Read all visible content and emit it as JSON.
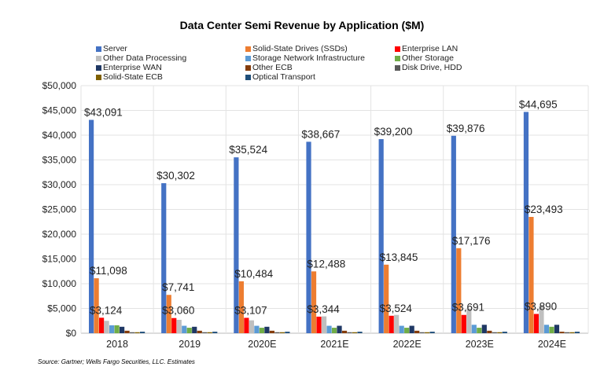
{
  "chart_data": {
    "type": "bar",
    "title": "Data Center Semi Revenue by Application ($M)",
    "categories": [
      "2018",
      "2019",
      "2020E",
      "2021E",
      "2022E",
      "2023E",
      "2024E"
    ],
    "ylim": [
      0,
      50000
    ],
    "yticks": [
      "$0",
      "$5,000",
      "$10,000",
      "$15,000",
      "$20,000",
      "$25,000",
      "$30,000",
      "$35,000",
      "$40,000",
      "$45,000",
      "$50,000"
    ],
    "grid": true,
    "legend": "top",
    "series": [
      {
        "name": "Server",
        "color": "#4472C4",
        "values": [
          43091,
          30302,
          35524,
          38667,
          39200,
          39876,
          44695
        ],
        "labels": [
          "$43,091",
          "$30,302",
          "$35,524",
          "$38,667",
          "$39,200",
          "$39,876",
          "$44,695"
        ]
      },
      {
        "name": "Solid-State Drives (SSDs)",
        "color": "#ED7D31",
        "values": [
          11098,
          7741,
          10484,
          12488,
          13845,
          17176,
          23493
        ],
        "labels": [
          "$11,098",
          "$7,741",
          "$10,484",
          "$12,488",
          "$13,845",
          "$17,176",
          "$23,493"
        ]
      },
      {
        "name": "Enterprise LAN",
        "color": "#FF0000",
        "values": [
          3124,
          3060,
          3107,
          3344,
          3524,
          3691,
          3890
        ],
        "labels": [
          "$3,124",
          "$3,060",
          "$3,107",
          "$3,344",
          "$3,524",
          "$3,691",
          "$3,890"
        ]
      },
      {
        "name": "Other Data Processing",
        "color": "#BFBFBF",
        "values": [
          2500,
          2700,
          2600,
          3400,
          3700,
          4900,
          5600
        ]
      },
      {
        "name": "Storage Network Infrastructure",
        "color": "#5B9BD5",
        "values": [
          1600,
          1500,
          1500,
          1500,
          1500,
          1700,
          1700
        ]
      },
      {
        "name": "Other Storage",
        "color": "#70AD47",
        "values": [
          1600,
          1100,
          1100,
          1100,
          1100,
          1100,
          1300
        ]
      },
      {
        "name": "Enterprise WAN",
        "color": "#1F3864",
        "values": [
          1300,
          1300,
          1300,
          1500,
          1500,
          1700,
          1700
        ]
      },
      {
        "name": "Other ECB",
        "color": "#843C0C",
        "values": [
          500,
          500,
          500,
          500,
          500,
          500,
          300
        ]
      },
      {
        "name": "Disk Drive, HDD",
        "color": "#595959",
        "values": [
          200,
          200,
          200,
          200,
          200,
          200,
          200
        ]
      },
      {
        "name": "Solid-State ECB",
        "color": "#7F6000",
        "values": [
          200,
          200,
          200,
          200,
          200,
          200,
          200
        ]
      },
      {
        "name": "Optical Transport",
        "color": "#1F4E79",
        "values": [
          300,
          300,
          300,
          300,
          300,
          300,
          300
        ]
      }
    ],
    "source": "Source:  Gartner; Wells Fargo Securities, LLC. Estimates"
  }
}
